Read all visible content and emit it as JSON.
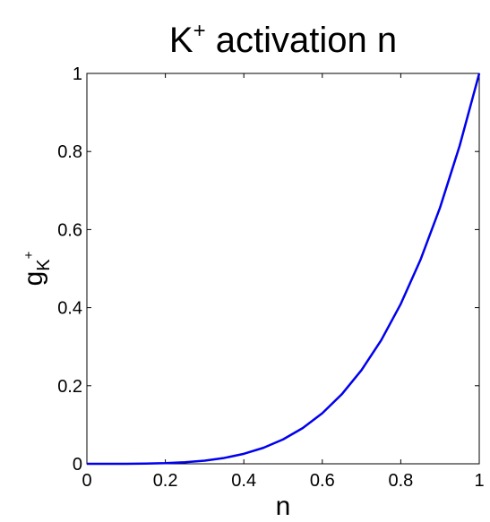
{
  "chart_data": {
    "type": "line",
    "title": {
      "base": "K",
      "superscript": "+",
      "rest": " activation n"
    },
    "xlabel": "n",
    "ylabel": {
      "base": "g",
      "subscript": "K",
      "superscript": "+"
    },
    "xlim": [
      0,
      1
    ],
    "ylim": [
      0,
      1
    ],
    "grid": false,
    "xticks": [
      0,
      0.2,
      0.4,
      0.6,
      0.8,
      1
    ],
    "xtick_labels": [
      "0",
      "0.2",
      "0.4",
      "0.6",
      "0.8",
      "1"
    ],
    "yticks": [
      0,
      0.2,
      0.4,
      0.6,
      0.8,
      1
    ],
    "ytick_labels": [
      "0",
      "0.2",
      "0.4",
      "0.6",
      "0.8",
      "1"
    ],
    "series": [
      {
        "color": "#0000ee",
        "x": [
          0,
          0.05,
          0.1,
          0.15,
          0.2,
          0.25,
          0.3,
          0.35,
          0.4,
          0.45,
          0.5,
          0.55,
          0.6,
          0.65,
          0.7,
          0.75,
          0.8,
          0.85,
          0.9,
          0.95,
          1
        ],
        "y": [
          0,
          1e-05,
          0.0001,
          0.0005,
          0.0016,
          0.0039,
          0.0081,
          0.015,
          0.0256,
          0.041,
          0.0625,
          0.0915,
          0.1296,
          0.1785,
          0.2401,
          0.3164,
          0.4096,
          0.522,
          0.6561,
          0.8145,
          1
        ]
      }
    ]
  }
}
